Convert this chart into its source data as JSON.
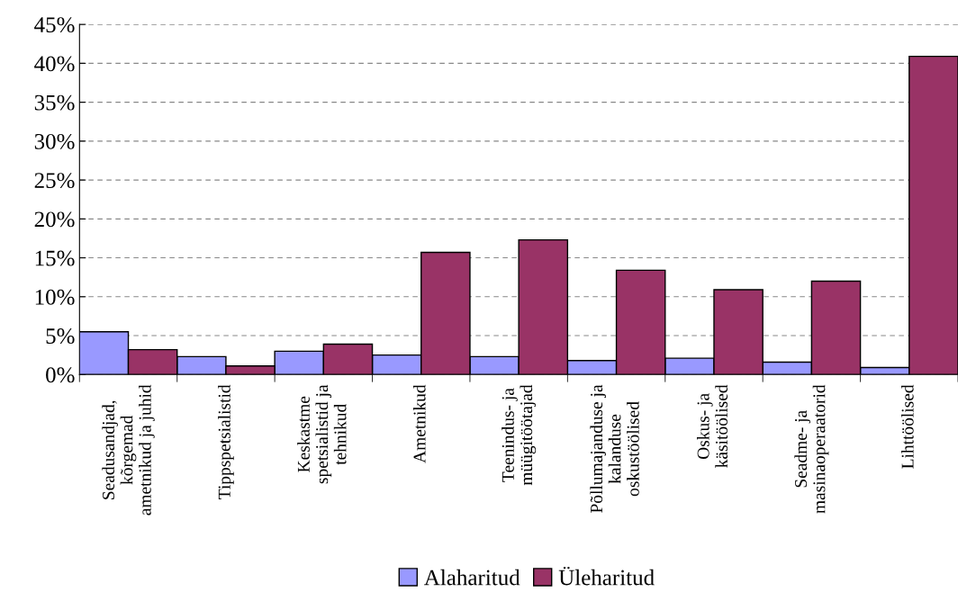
{
  "chart_data": {
    "type": "bar",
    "categories": [
      "Seadusandjad,\nkõrgemad\nametnikud ja juhid",
      "Tippspetsialistid",
      "Keskastme\nspetsialistid ja\ntehnikud",
      "Ametnikud",
      "Teenindus- ja\nmüügitöötajad",
      "Põllumajanduse ja\nkalanduse\noskustöölised",
      "Oskus- ja\nkäsitöölised",
      "Seadme- ja\nmasinaoperaatorid",
      "Lihttöölised"
    ],
    "series": [
      {
        "name": "Alaharitud",
        "color": "#9999ff",
        "values": [
          5.5,
          2.3,
          3.0,
          2.5,
          2.3,
          1.8,
          2.1,
          1.6,
          0.9
        ]
      },
      {
        "name": "Üleharitud",
        "color": "#993366",
        "values": [
          3.2,
          1.1,
          3.9,
          15.7,
          17.3,
          13.4,
          10.9,
          12.0,
          40.9
        ]
      }
    ],
    "ylim": [
      0,
      45
    ],
    "yticks": [
      {
        "value": 0,
        "label": "0%"
      },
      {
        "value": 5,
        "label": "5%"
      },
      {
        "value": 10,
        "label": "10%"
      },
      {
        "value": 15,
        "label": "15%"
      },
      {
        "value": 20,
        "label": "20%"
      },
      {
        "value": 25,
        "label": "25%"
      },
      {
        "value": 30,
        "label": "30%"
      },
      {
        "value": 35,
        "label": "35%"
      },
      {
        "value": 40,
        "label": "40%"
      },
      {
        "value": 45,
        "label": "45%"
      }
    ],
    "grid": "y",
    "legend": "bottom"
  }
}
